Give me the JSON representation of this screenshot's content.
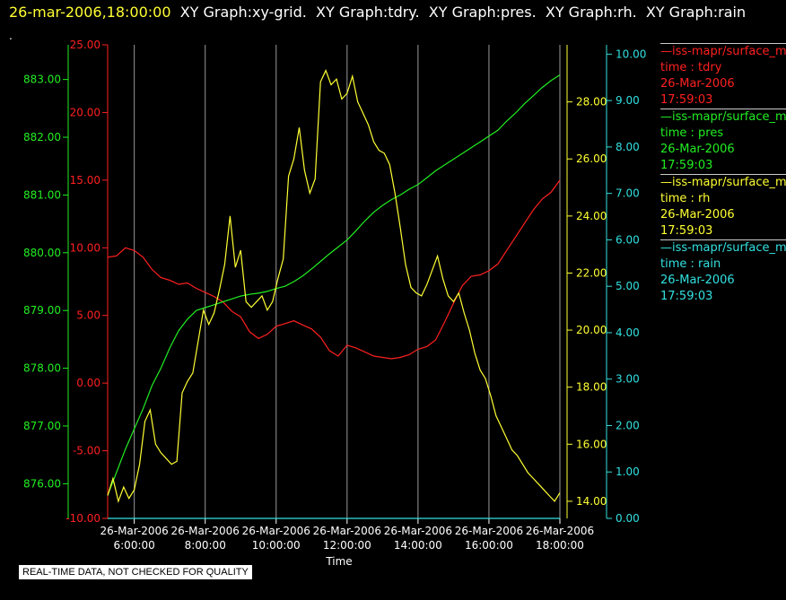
{
  "header": {
    "timestamp": "26-mar-2006,18:00:00",
    "titles": [
      "XY Graph:xy-grid.",
      "XY Graph:tdry.",
      "XY Graph:pres.",
      "XY Graph:rh.",
      "XY Graph:rain"
    ]
  },
  "marker": ".",
  "notice": "REAL-TIME DATA, NOT CHECKED FOR QUALITY",
  "legend": [
    {
      "name": "—iss-mapr/surface_m",
      "var": "time : tdry",
      "date": "26-Mar-2006",
      "time": "17:59:03",
      "color": "#ff2020"
    },
    {
      "name": "—iss-mapr/surface_m",
      "var": "time : pres",
      "date": "26-Mar-2006",
      "time": "17:59:03",
      "color": "#22ee22"
    },
    {
      "name": "—iss-mapr/surface_m",
      "var": "time : rh",
      "date": "26-Mar-2006",
      "time": "17:59:03",
      "color": "#ffff33"
    },
    {
      "name": "—iss-mapr/surface_m",
      "var": "time : rain",
      "date": "26-Mar-2006",
      "time": "17:59:03",
      "color": "#33e0e0"
    }
  ],
  "chart_data": {
    "type": "line",
    "xlabel": "Time",
    "x_ticks": [
      {
        "date": "26-Mar-2006",
        "time": "6:00:00",
        "h": 6
      },
      {
        "date": "26-Mar-2006",
        "time": "8:00:00",
        "h": 8
      },
      {
        "date": "26-Mar-2006",
        "time": "10:00:00",
        "h": 10
      },
      {
        "date": "26-Mar-2006",
        "time": "12:00:00",
        "h": 12
      },
      {
        "date": "26-Mar-2006",
        "time": "14:00:00",
        "h": 14
      },
      {
        "date": "26-Mar-2006",
        "time": "16:00:00",
        "h": 16
      },
      {
        "date": "26-Mar-2006",
        "time": "18:00:00",
        "h": 18
      }
    ],
    "xlim": [
      5.25,
      18.0
    ],
    "grid": true,
    "axes": {
      "tdry": {
        "color": "#ff2020",
        "ylim": [
          -10,
          25
        ],
        "ticks": [
          "25.00",
          "20.00",
          "15.00",
          "10.00",
          "5.00",
          "0.00",
          "-5.00",
          "-10.00"
        ],
        "tick_values": [
          25,
          20,
          15,
          10,
          5,
          0,
          -5,
          -10
        ]
      },
      "pres": {
        "color": "#22ee22",
        "ylim": [
          875.4,
          883.6
        ],
        "ticks": [
          "883.00",
          "882.00",
          "881.00",
          "880.00",
          "879.00",
          "878.00",
          "877.00",
          "876.00"
        ],
        "tick_values": [
          883,
          882,
          881,
          880,
          879,
          878,
          877,
          876
        ]
      },
      "rh": {
        "color": "#ffff33",
        "ylim": [
          13.4,
          30.0
        ],
        "ticks": [
          "28.00",
          "26.00",
          "24.00",
          "22.00",
          "20.00",
          "18.00",
          "16.00",
          "14.00"
        ],
        "tick_values": [
          28,
          26,
          24,
          22,
          20,
          18,
          16,
          14
        ]
      },
      "rain": {
        "color": "#33e0e0",
        "ylim": [
          0,
          10.2
        ],
        "ticks": [
          "10.00",
          "9.00",
          "8.00",
          "7.00",
          "6.00",
          "5.00",
          "4.00",
          "3.00",
          "2.00",
          "1.00",
          "0.00"
        ],
        "tick_values": [
          10,
          9,
          8,
          7,
          6,
          5,
          4,
          3,
          2,
          1,
          0
        ]
      }
    },
    "series": [
      {
        "name": "tdry",
        "axis": "tdry",
        "color": "#ff2020",
        "x": [
          5.25,
          5.5,
          5.75,
          6.0,
          6.25,
          6.5,
          6.75,
          7.0,
          7.25,
          7.5,
          7.75,
          8.0,
          8.25,
          8.5,
          8.75,
          9.0,
          9.25,
          9.5,
          9.75,
          10.0,
          10.25,
          10.5,
          10.75,
          11.0,
          11.25,
          11.5,
          11.75,
          12.0,
          12.25,
          12.5,
          12.75,
          13.0,
          13.25,
          13.5,
          13.75,
          14.0,
          14.25,
          14.5,
          14.75,
          15.0,
          15.25,
          15.5,
          15.75,
          16.0,
          16.25,
          16.5,
          16.75,
          17.0,
          17.25,
          17.5,
          17.75,
          18.0
        ],
        "y": [
          9.3,
          9.4,
          10.0,
          9.8,
          9.3,
          8.4,
          7.8,
          7.6,
          7.3,
          7.4,
          7.0,
          6.7,
          6.4,
          6.0,
          5.3,
          4.9,
          3.8,
          3.3,
          3.6,
          4.2,
          4.4,
          4.6,
          4.3,
          4.0,
          3.4,
          2.4,
          2.0,
          2.8,
          2.6,
          2.3,
          2.0,
          1.9,
          1.8,
          1.9,
          2.1,
          2.5,
          2.7,
          3.2,
          4.5,
          5.9,
          7.2,
          7.9,
          8.0,
          8.3,
          8.8,
          9.8,
          10.8,
          11.8,
          12.8,
          13.6,
          14.1,
          15.0
        ]
      },
      {
        "name": "pres",
        "axis": "pres",
        "color": "#22ee22",
        "x": [
          5.25,
          5.5,
          5.75,
          6.0,
          6.25,
          6.5,
          6.75,
          7.0,
          7.25,
          7.5,
          7.75,
          8.0,
          8.25,
          8.5,
          8.75,
          9.0,
          9.25,
          9.5,
          9.75,
          10.0,
          10.25,
          10.5,
          10.75,
          11.0,
          11.25,
          11.5,
          11.75,
          12.0,
          12.25,
          12.5,
          12.75,
          13.0,
          13.25,
          13.5,
          13.75,
          14.0,
          14.25,
          14.5,
          14.75,
          15.0,
          15.25,
          15.5,
          15.75,
          16.0,
          16.25,
          16.5,
          16.75,
          17.0,
          17.25,
          17.5,
          17.75,
          18.0
        ],
        "y": [
          875.8,
          876.2,
          876.6,
          876.95,
          877.3,
          877.7,
          878.0,
          878.35,
          878.65,
          878.85,
          879.0,
          879.05,
          879.1,
          879.15,
          879.2,
          879.25,
          879.28,
          879.3,
          879.33,
          879.38,
          879.42,
          879.5,
          879.6,
          879.72,
          879.85,
          879.98,
          880.1,
          880.22,
          880.38,
          880.55,
          880.7,
          880.82,
          880.92,
          881.0,
          881.1,
          881.18,
          881.3,
          881.42,
          881.52,
          881.62,
          881.72,
          881.82,
          881.92,
          882.02,
          882.12,
          882.28,
          882.42,
          882.58,
          882.72,
          882.86,
          882.98,
          883.08
        ]
      },
      {
        "name": "rh",
        "axis": "rh",
        "color": "#ffff33",
        "x": [
          5.25,
          5.4,
          5.55,
          5.7,
          5.85,
          6.0,
          6.15,
          6.3,
          6.45,
          6.6,
          6.75,
          6.9,
          7.05,
          7.2,
          7.35,
          7.5,
          7.65,
          7.8,
          7.95,
          8.1,
          8.25,
          8.4,
          8.55,
          8.7,
          8.85,
          9.0,
          9.15,
          9.3,
          9.45,
          9.6,
          9.75,
          9.9,
          10.05,
          10.2,
          10.35,
          10.5,
          10.65,
          10.8,
          10.95,
          11.1,
          11.25,
          11.4,
          11.55,
          11.7,
          11.85,
          12.0,
          12.15,
          12.3,
          12.45,
          12.6,
          12.75,
          12.9,
          13.05,
          13.2,
          13.35,
          13.5,
          13.65,
          13.8,
          13.95,
          14.1,
          14.25,
          14.4,
          14.55,
          14.7,
          14.85,
          15.0,
          15.15,
          15.3,
          15.45,
          15.6,
          15.75,
          15.9,
          16.05,
          16.2,
          16.35,
          16.5,
          16.65,
          16.8,
          16.95,
          17.1,
          17.25,
          17.4,
          17.55,
          17.7,
          17.85,
          18.0
        ],
        "y": [
          14.2,
          14.8,
          14.0,
          14.5,
          14.1,
          14.4,
          15.3,
          16.8,
          17.2,
          16.0,
          15.7,
          15.5,
          15.3,
          15.4,
          17.8,
          18.2,
          18.5,
          19.6,
          20.7,
          20.2,
          20.6,
          21.4,
          22.3,
          24.0,
          22.2,
          22.8,
          21.0,
          20.8,
          21.0,
          21.2,
          20.7,
          21.0,
          21.8,
          22.5,
          25.4,
          26.0,
          27.1,
          25.6,
          24.8,
          25.3,
          28.7,
          29.1,
          28.6,
          28.8,
          28.1,
          28.3,
          28.9,
          28.0,
          27.6,
          27.2,
          26.6,
          26.3,
          26.2,
          25.8,
          24.8,
          23.6,
          22.3,
          21.5,
          21.3,
          21.2,
          21.6,
          22.1,
          22.6,
          21.8,
          21.2,
          21.0,
          21.3,
          20.6,
          20.0,
          19.2,
          18.6,
          18.3,
          17.7,
          17.0,
          16.6,
          16.2,
          15.8,
          15.6,
          15.3,
          15.0,
          14.8,
          14.6,
          14.4,
          14.2,
          14.0,
          14.3
        ]
      },
      {
        "name": "rain",
        "axis": "rain",
        "color": "#33e0e0",
        "x": [
          5.25,
          18.0
        ],
        "y": [
          0.0,
          0.0
        ]
      }
    ]
  }
}
